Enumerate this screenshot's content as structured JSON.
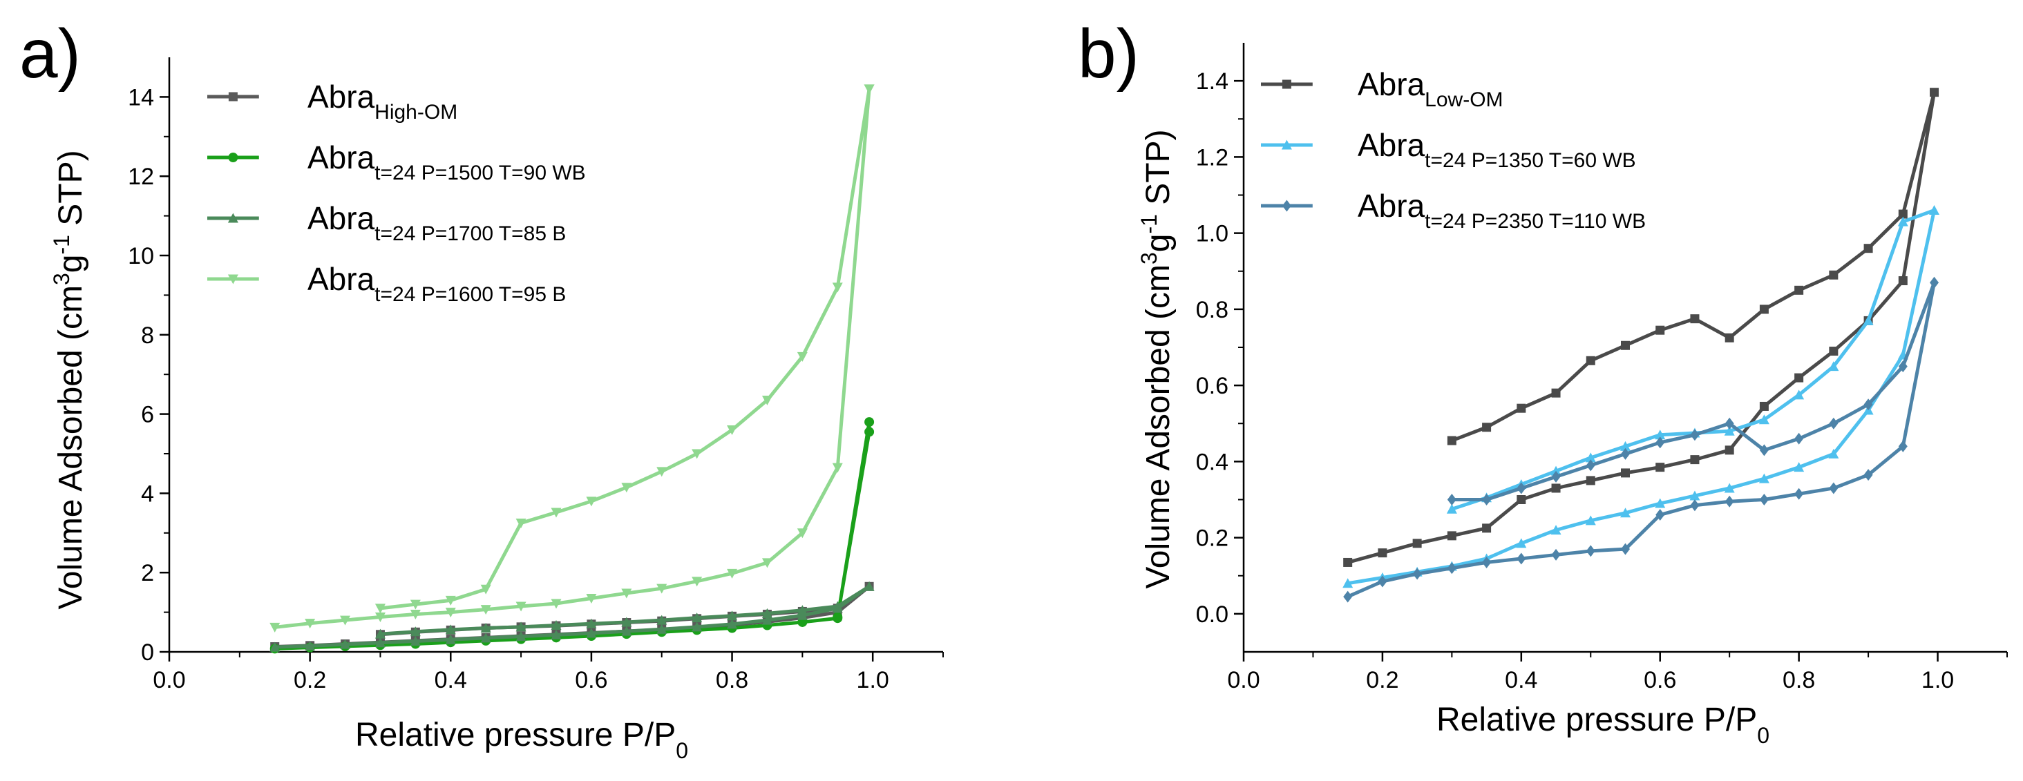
{
  "chart_data": [
    {
      "type": "line",
      "panel_label": "a)",
      "xlabel": "Relative pressure P/P",
      "xlabel_sub": "0",
      "ylabel_parts": [
        "Volume Adsorbed (cm",
        "3",
        "g",
        "-1",
        " STP)"
      ],
      "xlim": [
        0.0,
        1.1
      ],
      "ylim": [
        0,
        15
      ],
      "xticks": [
        0.0,
        0.2,
        0.4,
        0.6,
        0.8,
        1.0
      ],
      "xtick_labels": [
        "0.0",
        "0.2",
        "0.4",
        "0.6",
        "0.8",
        "1.0"
      ],
      "yticks": [
        0,
        2,
        4,
        6,
        8,
        10,
        12,
        14
      ],
      "ytick_labels": [
        "0",
        "2",
        "4",
        "6",
        "8",
        "10",
        "12",
        "14"
      ],
      "legend_position": "top-left",
      "series": [
        {
          "name": "Abra",
          "name_sub": "High-OM",
          "color": "#5a5a5a",
          "marker": "square",
          "x": [
            0.15,
            0.2,
            0.25,
            0.3,
            0.35,
            0.4,
            0.45,
            0.5,
            0.55,
            0.6,
            0.65,
            0.7,
            0.75,
            0.8,
            0.85,
            0.9,
            0.95,
            0.995,
            0.95,
            0.9,
            0.85,
            0.8,
            0.75,
            0.7,
            0.65,
            0.6,
            0.55,
            0.5,
            0.45,
            0.4,
            0.35,
            0.3
          ],
          "y": [
            0.13,
            0.16,
            0.2,
            0.24,
            0.28,
            0.32,
            0.36,
            0.4,
            0.44,
            0.48,
            0.52,
            0.56,
            0.62,
            0.68,
            0.76,
            0.86,
            1.0,
            1.65,
            1.1,
            1.02,
            0.95,
            0.9,
            0.84,
            0.78,
            0.74,
            0.7,
            0.66,
            0.63,
            0.6,
            0.55,
            0.5,
            0.44
          ]
        },
        {
          "name": "Abra",
          "name_sub": "t=24 P=1500 T=90 WB",
          "color": "#1aa01a",
          "marker": "circle",
          "x": [
            0.15,
            0.2,
            0.25,
            0.3,
            0.35,
            0.4,
            0.45,
            0.5,
            0.55,
            0.6,
            0.65,
            0.7,
            0.75,
            0.8,
            0.85,
            0.9,
            0.95,
            0.995,
            0.995,
            0.95
          ],
          "y": [
            0.08,
            0.11,
            0.14,
            0.17,
            0.2,
            0.24,
            0.28,
            0.32,
            0.36,
            0.4,
            0.45,
            0.5,
            0.55,
            0.6,
            0.67,
            0.75,
            0.85,
            5.8,
            5.55,
            0.88
          ]
        },
        {
          "name": "Abra",
          "name_sub": "t=24 P=1700 T=85 B",
          "color": "#4a8a5a",
          "marker": "triangle-up",
          "x": [
            0.15,
            0.2,
            0.25,
            0.3,
            0.35,
            0.4,
            0.45,
            0.5,
            0.55,
            0.6,
            0.65,
            0.7,
            0.75,
            0.8,
            0.85,
            0.9,
            0.95,
            0.995,
            0.95,
            0.9,
            0.85,
            0.8,
            0.75,
            0.7,
            0.65,
            0.6,
            0.55,
            0.5,
            0.45,
            0.4,
            0.35,
            0.3
          ],
          "y": [
            0.12,
            0.15,
            0.19,
            0.23,
            0.27,
            0.31,
            0.35,
            0.39,
            0.43,
            0.47,
            0.52,
            0.57,
            0.63,
            0.7,
            0.8,
            0.92,
            1.1,
            1.65,
            1.15,
            1.05,
            0.97,
            0.91,
            0.86,
            0.8,
            0.75,
            0.71,
            0.67,
            0.63,
            0.6,
            0.56,
            0.51,
            0.45
          ]
        },
        {
          "name": "Abra",
          "name_sub": "t=24 P=1600 T=95 B",
          "color": "#8fd88f",
          "marker": "triangle-down",
          "x": [
            0.15,
            0.2,
            0.25,
            0.3,
            0.35,
            0.4,
            0.45,
            0.5,
            0.55,
            0.6,
            0.65,
            0.7,
            0.75,
            0.8,
            0.85,
            0.9,
            0.95,
            0.995,
            0.995,
            0.95,
            0.9,
            0.85,
            0.8,
            0.75,
            0.7,
            0.65,
            0.6,
            0.55,
            0.5,
            0.45,
            0.4,
            0.35,
            0.3
          ],
          "y": [
            0.62,
            0.72,
            0.8,
            0.88,
            0.95,
            1.0,
            1.07,
            1.15,
            1.22,
            1.35,
            1.48,
            1.6,
            1.78,
            1.98,
            2.25,
            3.0,
            4.65,
            14.2,
            14.2,
            9.2,
            7.45,
            6.35,
            5.6,
            5.0,
            4.55,
            4.15,
            3.8,
            3.52,
            3.25,
            1.58,
            1.3,
            1.2,
            1.1
          ]
        }
      ]
    },
    {
      "type": "line",
      "panel_label": "b)",
      "xlabel": "Relative pressure P/P",
      "xlabel_sub": "0",
      "ylabel_parts": [
        "Volume Adsorbed (cm",
        "3",
        "g",
        "-1",
        " STP)"
      ],
      "xlim": [
        0.0,
        1.1
      ],
      "ylim": [
        -0.1,
        1.5
      ],
      "xticks": [
        0.0,
        0.2,
        0.4,
        0.6,
        0.8,
        1.0
      ],
      "xtick_labels": [
        "0.0",
        "0.2",
        "0.4",
        "0.6",
        "0.8",
        "1.0"
      ],
      "yticks": [
        0.0,
        0.2,
        0.4,
        0.6,
        0.8,
        1.0,
        1.2,
        1.4
      ],
      "ytick_labels": [
        "0.0",
        "0.2",
        "0.4",
        "0.6",
        "0.8",
        "1.0",
        "1.2",
        "1.4"
      ],
      "legend_position": "top-left",
      "series": [
        {
          "name": "Abra",
          "name_sub": "Low-OM",
          "color": "#4a4a4a",
          "marker": "square",
          "x": [
            0.15,
            0.2,
            0.25,
            0.3,
            0.35,
            0.4,
            0.45,
            0.5,
            0.55,
            0.6,
            0.65,
            0.7,
            0.75,
            0.8,
            0.85,
            0.9,
            0.95,
            0.995,
            0.95,
            0.9,
            0.85,
            0.8,
            0.75,
            0.7,
            0.65,
            0.6,
            0.55,
            0.5,
            0.45,
            0.4,
            0.35,
            0.3
          ],
          "y": [
            0.135,
            0.16,
            0.185,
            0.205,
            0.225,
            0.3,
            0.33,
            0.35,
            0.37,
            0.385,
            0.405,
            0.43,
            0.545,
            0.62,
            0.69,
            0.77,
            0.875,
            1.37,
            1.05,
            0.96,
            0.89,
            0.85,
            0.8,
            0.725,
            0.775,
            0.745,
            0.705,
            0.665,
            0.58,
            0.54,
            0.49,
            0.455
          ]
        },
        {
          "name": "Abra",
          "name_sub": "t=24 P=1350 T=60 WB",
          "color": "#4ec0ee",
          "marker": "triangle-up",
          "x": [
            0.15,
            0.2,
            0.25,
            0.3,
            0.35,
            0.4,
            0.45,
            0.5,
            0.55,
            0.6,
            0.65,
            0.7,
            0.75,
            0.8,
            0.85,
            0.9,
            0.95,
            0.995,
            0.95,
            0.9,
            0.85,
            0.8,
            0.75,
            0.7,
            0.65,
            0.6,
            0.55,
            0.5,
            0.45,
            0.4,
            0.35,
            0.3
          ],
          "y": [
            0.08,
            0.095,
            0.11,
            0.125,
            0.145,
            0.185,
            0.22,
            0.245,
            0.265,
            0.29,
            0.31,
            0.33,
            0.355,
            0.385,
            0.42,
            0.535,
            0.68,
            1.06,
            1.03,
            0.77,
            0.65,
            0.575,
            0.51,
            0.48,
            0.475,
            0.47,
            0.44,
            0.41,
            0.375,
            0.34,
            0.305,
            0.275
          ]
        },
        {
          "name": "Abra",
          "name_sub": "t=24 P=2350 T=110 WB",
          "color": "#4d83a8",
          "marker": "diamond",
          "x": [
            0.15,
            0.2,
            0.25,
            0.3,
            0.35,
            0.4,
            0.45,
            0.5,
            0.55,
            0.6,
            0.65,
            0.7,
            0.75,
            0.8,
            0.85,
            0.9,
            0.95,
            0.995,
            0.95,
            0.9,
            0.85,
            0.8,
            0.75,
            0.7,
            0.65,
            0.6,
            0.55,
            0.5,
            0.45,
            0.4,
            0.35,
            0.3
          ],
          "y": [
            0.045,
            0.085,
            0.105,
            0.12,
            0.135,
            0.145,
            0.155,
            0.165,
            0.17,
            0.26,
            0.285,
            0.295,
            0.3,
            0.315,
            0.33,
            0.365,
            0.44,
            0.87,
            0.65,
            0.55,
            0.5,
            0.46,
            0.43,
            0.5,
            0.47,
            0.45,
            0.42,
            0.39,
            0.36,
            0.33,
            0.3,
            0.3
          ]
        }
      ]
    }
  ]
}
